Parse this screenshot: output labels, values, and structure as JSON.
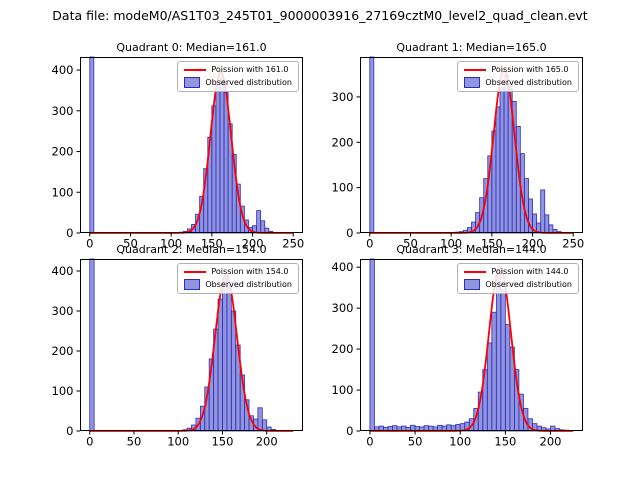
{
  "figure": {
    "title": "Data file: modeM0/AS1T03_245T01_9000003916_27169cztM0_level2_quad_clean.evt"
  },
  "colors": {
    "bar_fill": "rgba(72,77,202,0.6)",
    "bar_edge": "#2f2fb3",
    "curve": "#ff0000",
    "axes": "#000000"
  },
  "chart_data": [
    {
      "type": "histogram",
      "title": "Quadrant 0: Median=161.0",
      "median": 161.0,
      "legend": {
        "line_label": "Poission with 161.0",
        "patch_label": "Observed distribution"
      },
      "bin_start": 0,
      "bin_width": 5,
      "counts": [
        3000,
        0,
        0,
        0,
        0,
        0,
        0,
        0,
        0,
        0,
        0,
        0,
        0,
        0,
        0,
        0,
        0,
        0,
        0,
        0,
        0,
        1,
        2,
        4,
        10,
        21,
        46,
        90,
        158,
        235,
        312,
        370,
        381,
        345,
        268,
        193,
        120,
        66,
        32,
        14,
        18,
        55,
        30,
        12,
        4,
        1,
        0,
        0,
        0,
        0
      ],
      "curve": {
        "mu": 161,
        "sigma": 12.7,
        "peak": 395
      },
      "xlim": [
        -12,
        262
      ],
      "ylim": [
        0,
        432
      ],
      "xticks": [
        0,
        50,
        100,
        150,
        200,
        250
      ],
      "yticks": [
        0,
        100,
        200,
        300,
        400
      ],
      "xlabel": "",
      "ylabel": ""
    },
    {
      "type": "histogram",
      "title": "Quadrant 1: Median=165.0",
      "median": 165.0,
      "legend": {
        "line_label": "Poission with 165.0",
        "patch_label": "Observed distribution"
      },
      "bin_start": 0,
      "bin_width": 5,
      "counts": [
        3000,
        0,
        0,
        0,
        0,
        0,
        0,
        0,
        0,
        0,
        0,
        0,
        0,
        0,
        0,
        0,
        0,
        0,
        0,
        0,
        0,
        2,
        3,
        6,
        12,
        24,
        45,
        78,
        120,
        170,
        225,
        278,
        320,
        348,
        330,
        290,
        235,
        175,
        120,
        75,
        42,
        22,
        95,
        40,
        18,
        8,
        3,
        1,
        0,
        0
      ],
      "curve": {
        "mu": 165,
        "sigma": 12.8,
        "peak": 360
      },
      "xlim": [
        -12,
        262
      ],
      "ylim": [
        0,
        388
      ],
      "xticks": [
        0,
        50,
        100,
        150,
        200,
        250
      ],
      "yticks": [
        0,
        100,
        200,
        300
      ],
      "xlabel": "",
      "ylabel": ""
    },
    {
      "type": "histogram",
      "title": "Quadrant 2: Median=154.0",
      "median": 154.0,
      "legend": {
        "line_label": "Poission with 154.0",
        "patch_label": "Observed distribution"
      },
      "bin_start": 0,
      "bin_width": 5,
      "counts": [
        3000,
        0,
        0,
        0,
        0,
        0,
        0,
        0,
        0,
        0,
        0,
        0,
        0,
        0,
        0,
        0,
        0,
        0,
        0,
        0,
        1,
        3,
        7,
        15,
        32,
        62,
        110,
        180,
        255,
        330,
        382,
        360,
        300,
        215,
        140,
        78,
        38,
        30,
        58,
        28,
        10,
        4,
        1,
        0,
        0,
        0
      ],
      "curve": {
        "mu": 154,
        "sigma": 12.4,
        "peak": 390
      },
      "xlim": [
        -11,
        241
      ],
      "ylim": [
        0,
        430
      ],
      "xticks": [
        0,
        50,
        100,
        150,
        200
      ],
      "yticks": [
        0,
        100,
        200,
        300,
        400
      ],
      "xlabel": "",
      "ylabel": ""
    },
    {
      "type": "histogram",
      "title": "Quadrant 3: Median=144.0",
      "median": 144.0,
      "legend": {
        "line_label": "Poission with 144.0",
        "patch_label": "Observed distribution"
      },
      "bin_start": 0,
      "bin_width": 5,
      "counts": [
        3000,
        10,
        12,
        9,
        11,
        13,
        10,
        12,
        9,
        14,
        11,
        10,
        13,
        12,
        10,
        14,
        12,
        15,
        13,
        16,
        18,
        22,
        30,
        55,
        95,
        150,
        215,
        290,
        385,
        345,
        260,
        205,
        150,
        90,
        55,
        30,
        18,
        12,
        8,
        5,
        12,
        6,
        3,
        2,
        1
      ],
      "curve": {
        "mu": 144,
        "sigma": 12.0,
        "peak": 400
      },
      "xlim": [
        -11,
        236
      ],
      "ylim": [
        0,
        420
      ],
      "xticks": [
        0,
        50,
        100,
        150,
        200
      ],
      "yticks": [
        0,
        100,
        200,
        300,
        400
      ],
      "xlabel": "",
      "ylabel": ""
    }
  ]
}
